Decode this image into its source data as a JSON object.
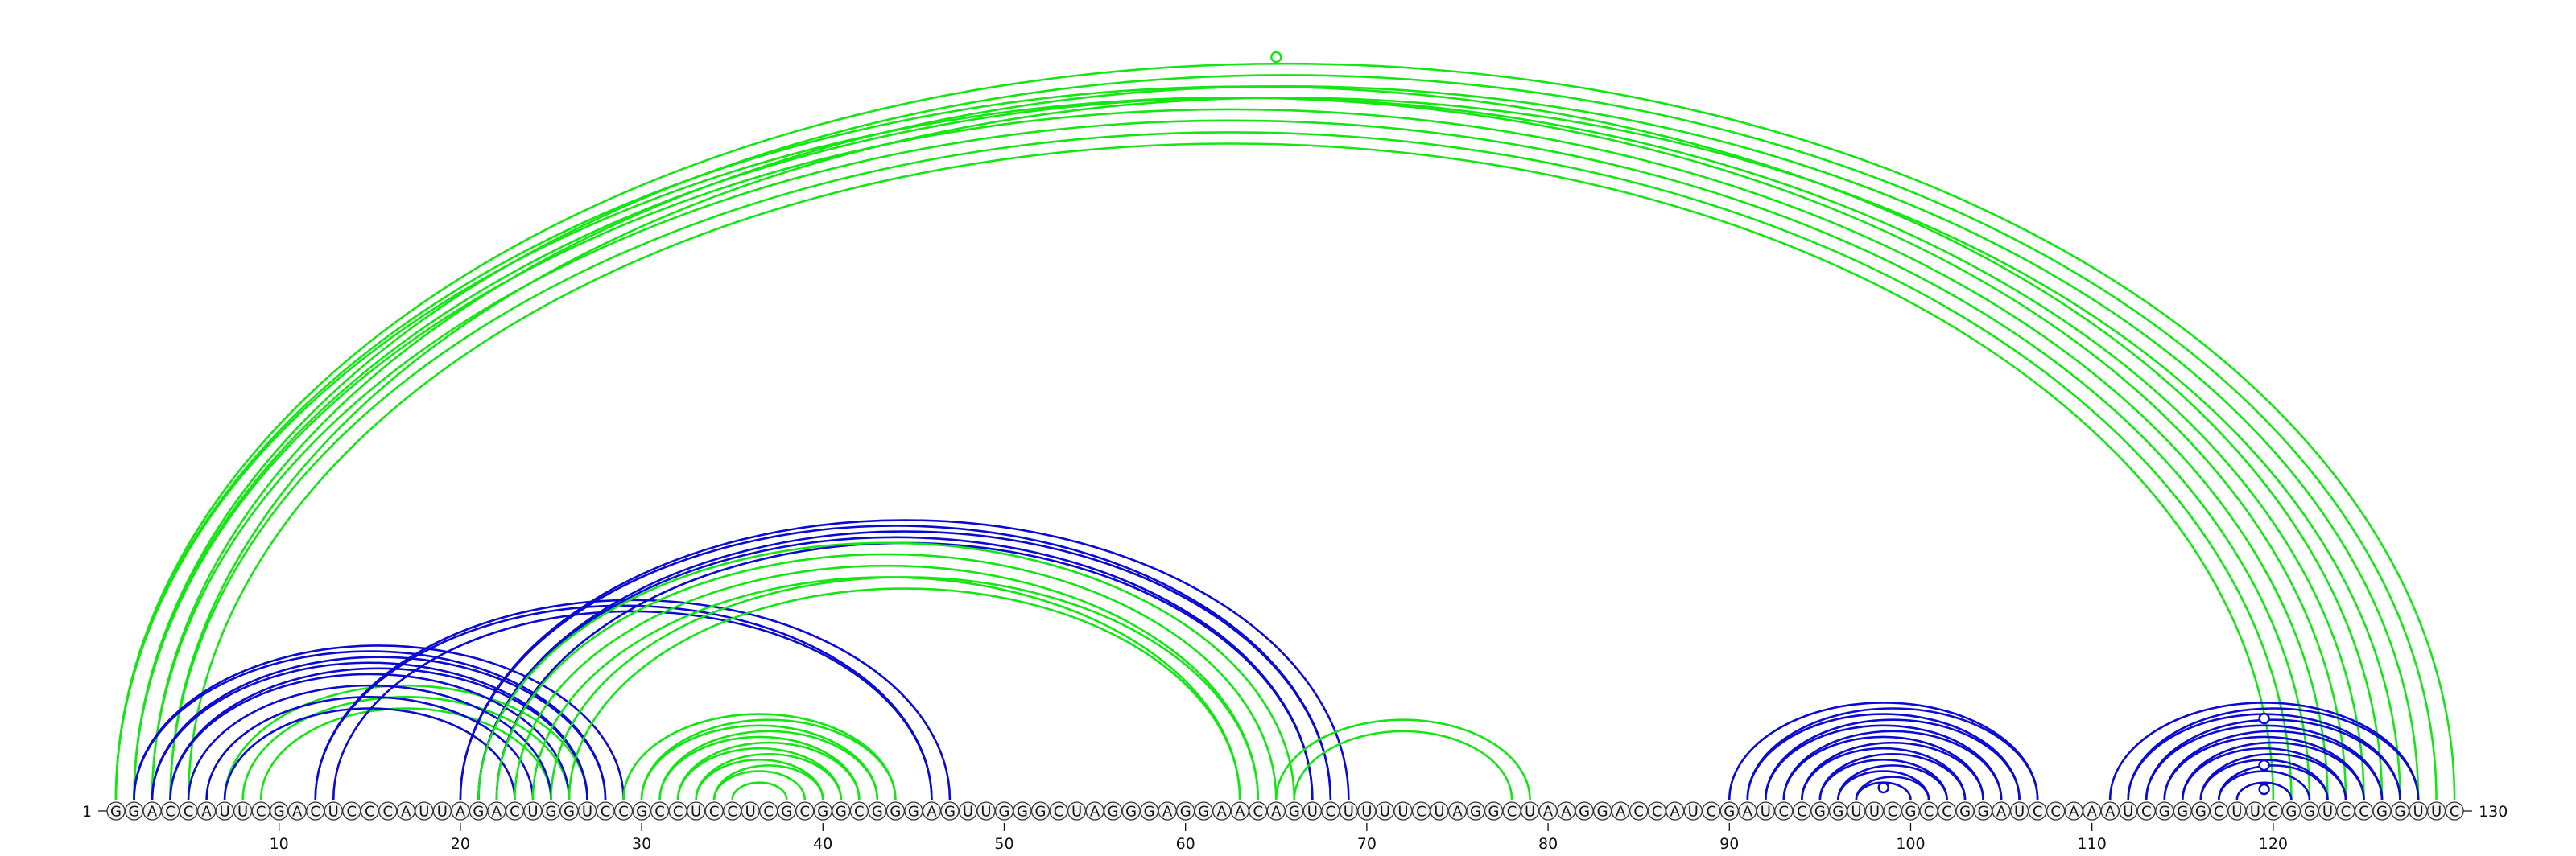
{
  "diagram": {
    "type": "rna-arc-diagram",
    "sequence": "GGACCAUUCGACUCCCAUUAGACUGGUCCGCCUCCUCGCGGCGGGAGUUGGGCUAGGGAGGAACAGUCUUUUCUAGGCUAAGGACCAUCGAUCCGGUUCGCCGGAUCCAAAUCGGGCUUCGGUCCGGUUC",
    "start_label": "1",
    "end_label": "130",
    "tick_labels": [
      "10",
      "20",
      "30",
      "40",
      "50",
      "60",
      "70",
      "80",
      "90",
      "100",
      "110",
      "120"
    ],
    "tick_positions": [
      10,
      20,
      30,
      40,
      50,
      60,
      70,
      80,
      90,
      100,
      110,
      120
    ],
    "colors": {
      "green": "#14e614",
      "blue": "#0a0ad2",
      "text": "#111111"
    },
    "structures": [
      {
        "color": "green",
        "pairs": [
          [
            1,
            124
          ],
          [
            2,
            123
          ],
          [
            3,
            122
          ],
          [
            4,
            121
          ]
        ]
      },
      {
        "color": "green",
        "pairs": [
          [
            1,
            126
          ],
          [
            2,
            125
          ],
          [
            5,
            120
          ]
        ]
      },
      {
        "color": "green",
        "pairs": [
          [
            1,
            130
          ],
          [
            2,
            129
          ],
          [
            3,
            128
          ],
          [
            4,
            127
          ]
        ]
      },
      {
        "color": "green",
        "pairs": [
          [
            7,
            27
          ],
          [
            8,
            26
          ],
          [
            9,
            25
          ]
        ]
      },
      {
        "color": "blue",
        "pairs": [
          [
            2,
            28
          ],
          [
            3,
            27
          ],
          [
            4,
            26
          ],
          [
            5,
            25
          ],
          [
            6,
            24
          ],
          [
            7,
            23
          ]
        ]
      },
      {
        "color": "blue",
        "pairs": [
          [
            2,
            29
          ],
          [
            3,
            28
          ],
          [
            4,
            27
          ]
        ]
      },
      {
        "color": "blue",
        "pairs": [
          [
            12,
            47
          ],
          [
            13,
            46
          ],
          [
            20,
            69
          ],
          [
            21,
            68
          ],
          [
            22,
            67
          ]
        ]
      },
      {
        "color": "blue",
        "pairs": [
          [
            12,
            46
          ],
          [
            21,
            67
          ],
          [
            20,
            68
          ]
        ]
      },
      {
        "color": "green",
        "pairs": [
          [
            21,
            66
          ],
          [
            22,
            65
          ],
          [
            23,
            64
          ],
          [
            24,
            63
          ]
        ]
      },
      {
        "color": "green",
        "pairs": [
          [
            25,
            64
          ],
          [
            26,
            63
          ]
        ]
      },
      {
        "color": "green",
        "pairs": [
          [
            29,
            44
          ],
          [
            30,
            43
          ],
          [
            31,
            42
          ],
          [
            32,
            41
          ],
          [
            33,
            40
          ],
          [
            34,
            39
          ]
        ]
      },
      {
        "color": "green",
        "pairs": [
          [
            30,
            44
          ],
          [
            31,
            43
          ],
          [
            32,
            42
          ],
          [
            33,
            41
          ],
          [
            34,
            40
          ],
          [
            35,
            38
          ]
        ]
      },
      {
        "color": "green",
        "pairs": [
          [
            65,
            79
          ],
          [
            66,
            78
          ]
        ]
      },
      {
        "color": "blue",
        "pairs": [
          [
            90,
            107
          ],
          [
            91,
            106
          ],
          [
            92,
            105
          ],
          [
            93,
            104
          ],
          [
            94,
            103
          ],
          [
            95,
            102
          ],
          [
            96,
            101
          ],
          [
            97,
            100
          ]
        ]
      },
      {
        "color": "blue",
        "pairs": [
          [
            91,
            107
          ],
          [
            92,
            106
          ],
          [
            93,
            105
          ],
          [
            94,
            104
          ],
          [
            95,
            103
          ],
          [
            96,
            102
          ],
          [
            97,
            101
          ]
        ]
      },
      {
        "color": "blue",
        "pairs": [
          [
            111,
            128
          ],
          [
            112,
            127
          ],
          [
            113,
            126
          ],
          [
            114,
            125
          ],
          [
            115,
            124
          ],
          [
            116,
            123
          ],
          [
            117,
            122
          ],
          [
            118,
            121
          ]
        ]
      },
      {
        "color": "blue",
        "pairs": [
          [
            112,
            128
          ],
          [
            113,
            127
          ],
          [
            114,
            126
          ],
          [
            115,
            125
          ],
          [
            116,
            124
          ],
          [
            117,
            123
          ]
        ]
      }
    ],
    "hairpin_markers": [
      {
        "color": "green",
        "position": 65
      },
      {
        "color": "blue",
        "position": 98.5
      },
      {
        "color": "blue",
        "position": 119.5
      },
      {
        "color": "blue",
        "position": 119.5
      },
      {
        "color": "blue",
        "position": 119.5
      }
    ]
  }
}
